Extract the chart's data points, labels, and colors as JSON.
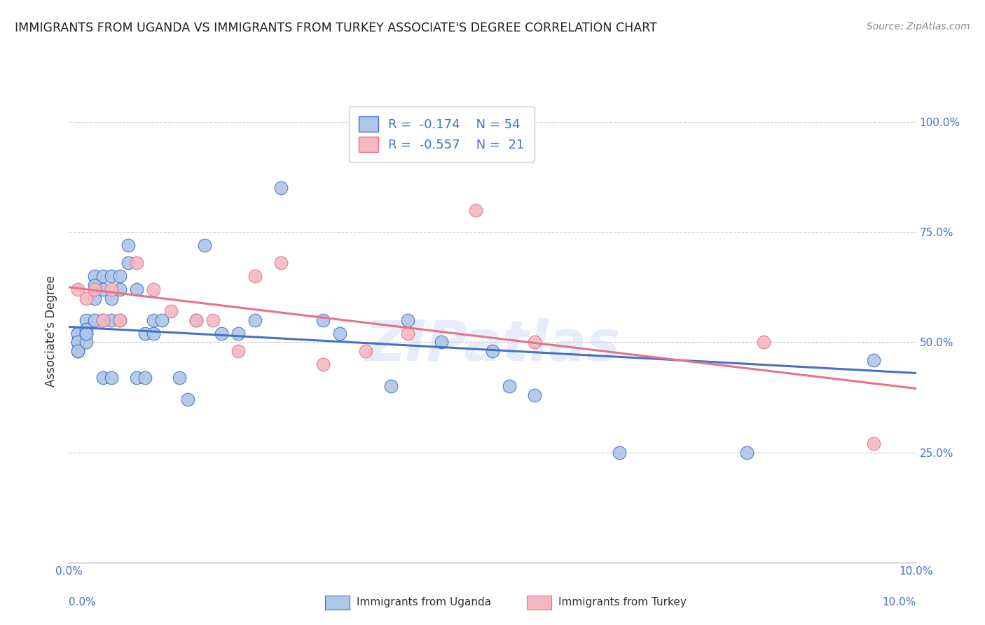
{
  "title": "IMMIGRANTS FROM UGANDA VS IMMIGRANTS FROM TURKEY ASSOCIATE'S DEGREE CORRELATION CHART",
  "source": "Source: ZipAtlas.com",
  "ylabel": "Associate's Degree",
  "watermark": "ZIPatlas",
  "x_min": 0.0,
  "x_max": 0.1,
  "y_min": 0.0,
  "y_max": 1.05,
  "x_ticks": [
    0.0,
    0.01,
    0.02,
    0.03,
    0.04,
    0.05,
    0.06,
    0.07,
    0.08,
    0.09,
    0.1
  ],
  "x_tick_labels_bottom": [
    "0.0%",
    "",
    "",
    "",
    "",
    "",
    "",
    "",
    "",
    "",
    "10.0%"
  ],
  "y_ticks": [
    0.0,
    0.25,
    0.5,
    0.75,
    1.0
  ],
  "y_tick_labels_right": [
    "",
    "25.0%",
    "50.0%",
    "75.0%",
    "100.0%"
  ],
  "uganda_color": "#aec6e8",
  "turkey_color": "#f4b8c1",
  "uganda_line_color": "#4472c4",
  "turkey_line_color": "#e8718a",
  "legend_r_uganda": "R =  -0.174",
  "legend_n_uganda": "N = 54",
  "legend_r_turkey": "R =  -0.557",
  "legend_n_turkey": "N =  21",
  "legend_label_uganda": "Immigrants from Uganda",
  "legend_label_turkey": "Immigrants from Turkey",
  "uganda_points_x": [
    0.001,
    0.001,
    0.001,
    0.001,
    0.001,
    0.001,
    0.002,
    0.002,
    0.002,
    0.002,
    0.002,
    0.003,
    0.003,
    0.003,
    0.003,
    0.004,
    0.004,
    0.004,
    0.004,
    0.005,
    0.005,
    0.005,
    0.005,
    0.006,
    0.006,
    0.006,
    0.007,
    0.007,
    0.008,
    0.008,
    0.009,
    0.009,
    0.01,
    0.01,
    0.011,
    0.013,
    0.014,
    0.015,
    0.016,
    0.018,
    0.02,
    0.022,
    0.025,
    0.03,
    0.032,
    0.038,
    0.04,
    0.05,
    0.052,
    0.055,
    0.065,
    0.08,
    0.095,
    0.044
  ],
  "uganda_points_y": [
    0.5,
    0.52,
    0.48,
    0.52,
    0.5,
    0.48,
    0.52,
    0.55,
    0.5,
    0.53,
    0.52,
    0.55,
    0.65,
    0.63,
    0.6,
    0.65,
    0.62,
    0.55,
    0.42,
    0.65,
    0.6,
    0.55,
    0.42,
    0.65,
    0.62,
    0.55,
    0.72,
    0.68,
    0.62,
    0.42,
    0.52,
    0.42,
    0.55,
    0.52,
    0.55,
    0.42,
    0.37,
    0.55,
    0.72,
    0.52,
    0.52,
    0.55,
    0.85,
    0.55,
    0.52,
    0.4,
    0.55,
    0.48,
    0.4,
    0.38,
    0.25,
    0.25,
    0.46,
    0.5
  ],
  "turkey_points_x": [
    0.001,
    0.002,
    0.003,
    0.004,
    0.005,
    0.006,
    0.008,
    0.01,
    0.012,
    0.015,
    0.017,
    0.02,
    0.022,
    0.025,
    0.03,
    0.035,
    0.04,
    0.048,
    0.055,
    0.082,
    0.095
  ],
  "turkey_points_y": [
    0.62,
    0.6,
    0.62,
    0.55,
    0.62,
    0.55,
    0.68,
    0.62,
    0.57,
    0.55,
    0.55,
    0.48,
    0.65,
    0.68,
    0.45,
    0.48,
    0.52,
    0.8,
    0.5,
    0.5,
    0.27
  ],
  "uganda_intercept": 0.535,
  "uganda_slope": -1.05,
  "turkey_intercept": 0.625,
  "turkey_slope": -2.3,
  "grid_color": "#cccccc",
  "background_color": "#ffffff",
  "title_color": "#222222",
  "tick_label_color": "#4472c4",
  "source_color": "#888888"
}
